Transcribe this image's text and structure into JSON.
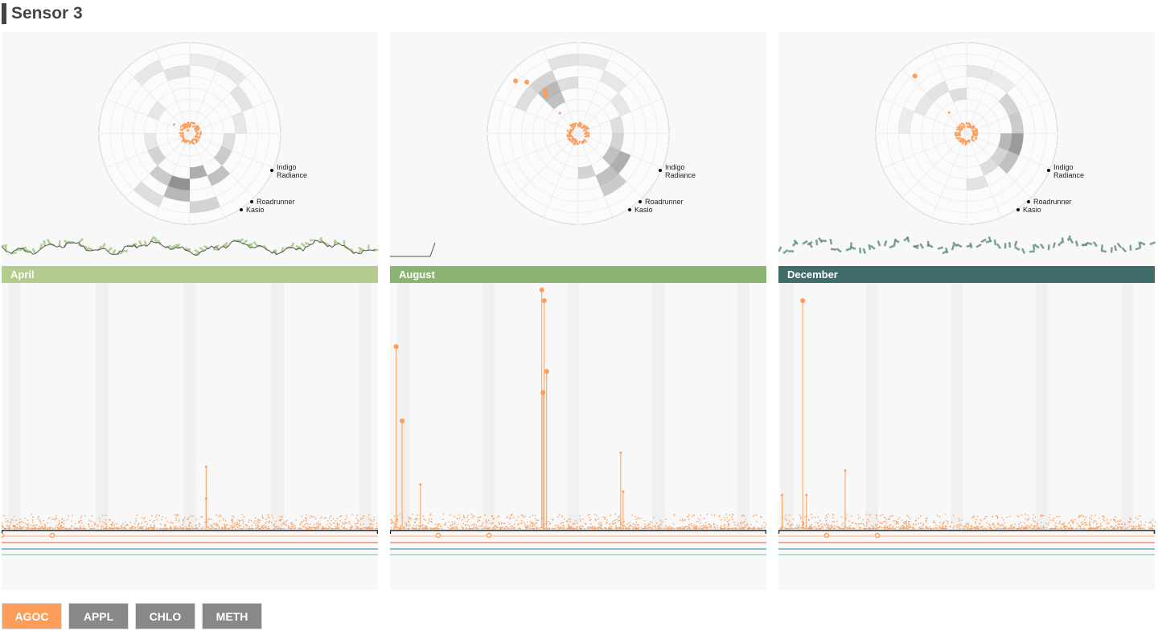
{
  "title": "Sensor 3",
  "colors": {
    "pollutant": "#fc9d5c",
    "wind_dark": "#555"
  },
  "factories": [
    {
      "name": "Indigo",
      "name2": "Radiance"
    },
    {
      "name": "Roadrunner"
    },
    {
      "name": "Kasio"
    }
  ],
  "chart_data": [
    {
      "type": "scatter",
      "month": "April",
      "color": "#b3cb8c",
      "wind_color": "#9ec57a",
      "show_wind_line": true,
      "days": 30,
      "spikes": [
        {
          "day": 16.3,
          "value": 0.18
        },
        {
          "day": 16.3,
          "value": 0.09
        }
      ],
      "polar_bins": [
        [
          5,
          3,
          0.25
        ],
        [
          4,
          3,
          0.15
        ],
        [
          6,
          4,
          0.3
        ],
        [
          7,
          3,
          0.4
        ],
        [
          8,
          4,
          0.55
        ],
        [
          8,
          5,
          0.35
        ],
        [
          9,
          4,
          0.25
        ],
        [
          3,
          4,
          0.1
        ],
        [
          2,
          5,
          0.12
        ],
        [
          1,
          6,
          0.1
        ],
        [
          10,
          3,
          0.2
        ],
        [
          11,
          3,
          0.1
        ],
        [
          0,
          6,
          0.08
        ],
        [
          15,
          5,
          0.12
        ],
        [
          14,
          6,
          0.1
        ],
        [
          13,
          3,
          0.1
        ],
        [
          7,
          6,
          0.2
        ],
        [
          9,
          6,
          0.15
        ]
      ],
      "polar_points": [
        [
          0.04,
          330
        ],
        [
          0.2,
          300
        ]
      ]
    },
    {
      "type": "scatter",
      "month": "August",
      "color": "#8ab374",
      "wind_color": "#8ab374",
      "show_wind_line": false,
      "days": 31,
      "spikes": [
        {
          "day": 0.5,
          "value": 0.52
        },
        {
          "day": 1,
          "value": 0.31
        },
        {
          "day": 2.5,
          "value": 0.13
        },
        {
          "day": 12.5,
          "value": 0.68
        },
        {
          "day": 12.7,
          "value": 0.65
        },
        {
          "day": 12.9,
          "value": 0.45
        },
        {
          "day": 12.6,
          "value": 0.39
        },
        {
          "day": 19,
          "value": 0.22
        },
        {
          "day": 19.2,
          "value": 0.11
        }
      ],
      "polar_bins": [
        [
          14,
          3,
          0.3
        ],
        [
          14,
          4,
          0.35
        ],
        [
          14,
          5,
          0.2
        ],
        [
          15,
          4,
          0.15
        ],
        [
          5,
          3,
          0.3
        ],
        [
          5,
          4,
          0.4
        ],
        [
          6,
          4,
          0.3
        ],
        [
          6,
          5,
          0.25
        ],
        [
          4,
          3,
          0.2
        ],
        [
          3,
          3,
          0.15
        ],
        [
          7,
          3,
          0.2
        ],
        [
          13,
          5,
          0.15
        ],
        [
          0,
          6,
          0.1
        ],
        [
          15,
          6,
          0.12
        ],
        [
          1,
          5,
          0.1
        ],
        [
          2,
          4,
          0.1
        ]
      ],
      "polar_points": [
        [
          0.9,
          310
        ],
        [
          0.8,
          315
        ],
        [
          0.55,
          320
        ],
        [
          0.6,
          322
        ],
        [
          0.3,
          318
        ]
      ]
    },
    {
      "type": "scatter",
      "month": "December",
      "color": "#3f6b68",
      "wind_color": "#5c8a86",
      "show_wind_line": false,
      "days": 31,
      "spikes": [
        {
          "day": 0.3,
          "value": 0.1
        },
        {
          "day": 2,
          "value": 0.65
        },
        {
          "day": 2.3,
          "value": 0.1
        },
        {
          "day": 5.5,
          "value": 0.17
        }
      ],
      "polar_bins": [
        [
          4,
          3,
          0.35
        ],
        [
          4,
          4,
          0.5
        ],
        [
          5,
          4,
          0.3
        ],
        [
          3,
          4,
          0.25
        ],
        [
          2,
          4,
          0.2
        ],
        [
          5,
          3,
          0.2
        ],
        [
          6,
          3,
          0.15
        ],
        [
          15,
          3,
          0.15
        ],
        [
          14,
          4,
          0.12
        ],
        [
          13,
          4,
          0.1
        ],
        [
          0,
          5,
          0.1
        ],
        [
          1,
          5,
          0.08
        ],
        [
          12,
          5,
          0.08
        ],
        [
          7,
          4,
          0.12
        ]
      ],
      "polar_points": [
        [
          0.85,
          318
        ],
        [
          0.3,
          320
        ]
      ]
    }
  ],
  "buttons": [
    {
      "label": "AGOC",
      "active": true
    },
    {
      "label": "APPL",
      "active": false
    },
    {
      "label": "CHLO",
      "active": false
    },
    {
      "label": "METH",
      "active": false
    }
  ]
}
